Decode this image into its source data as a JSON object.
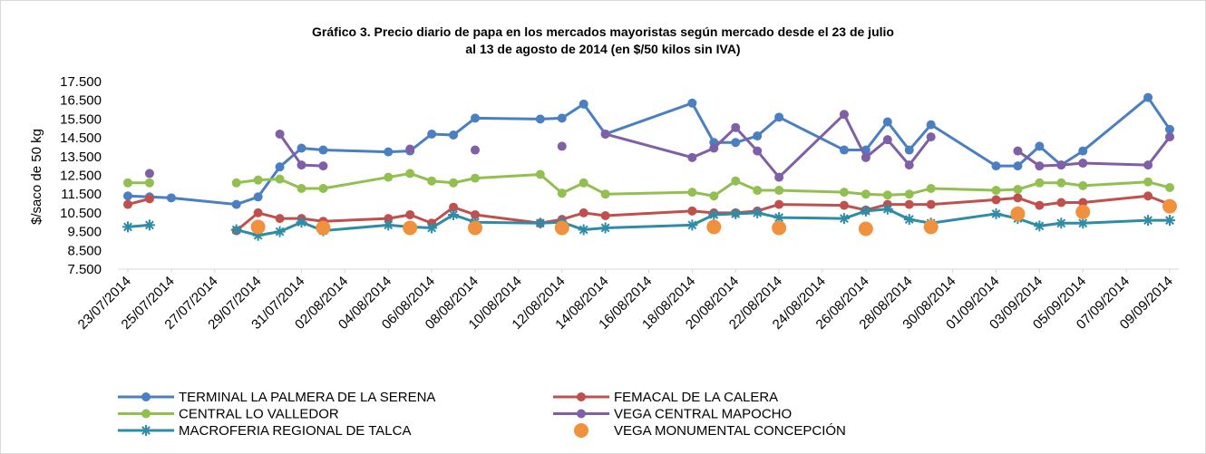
{
  "chart_data": {
    "type": "line",
    "title": [
      "Gráfico 3. Precio diario de papa en los mercados mayoristas según mercado desde el 23 de julio",
      "al 13 de agosto de 2014 (en $/50 kilos sin IVA)"
    ],
    "y_label": "$/saco de 50 kg",
    "x": [
      "23/07/2014",
      "24/07/2014",
      "25/07/2014",
      "28/07/2014",
      "29/07/2014",
      "30/07/2014",
      "31/07/2014",
      "01/08/2014",
      "04/08/2014",
      "05/08/2014",
      "06/08/2014",
      "07/08/2014",
      "08/08/2014",
      "11/08/2014",
      "12/08/2014",
      "13/08/2014",
      "14/08/2014",
      "18/08/2014",
      "19/08/2014",
      "20/08/2014",
      "21/08/2014",
      "22/08/2014",
      "25/08/2014",
      "26/08/2014",
      "27/08/2014",
      "28/08/2014",
      "29/08/2014",
      "01/09/2014",
      "02/09/2014",
      "03/09/2014",
      "04/09/2014",
      "05/09/2014",
      "08/09/2014",
      "09/09/2014"
    ],
    "xlim": [
      "23/07/2014",
      "09/09/2014"
    ],
    "xticks": [
      "23/07/2014",
      "25/07/2014",
      "27/07/2014",
      "29/07/2014",
      "31/07/2014",
      "02/08/2014",
      "04/08/2014",
      "06/08/2014",
      "08/08/2014",
      "10/08/2014",
      "12/08/2014",
      "14/08/2014",
      "16/08/2014",
      "18/08/2014",
      "20/08/2014",
      "22/08/2014",
      "24/08/2014",
      "26/08/2014",
      "28/08/2014",
      "30/08/2014",
      "01/09/2014",
      "03/09/2014",
      "05/09/2014",
      "07/09/2014",
      "09/09/2014"
    ],
    "ylim": [
      7500,
      17500
    ],
    "yticks": [
      {
        "value": 7500,
        "label": "7.500"
      },
      {
        "value": 8500,
        "label": "8.500"
      },
      {
        "value": 9500,
        "label": "9.500"
      },
      {
        "value": 10500,
        "label": "10.500"
      },
      {
        "value": 11500,
        "label": "11.500"
      },
      {
        "value": 12500,
        "label": "12.500"
      },
      {
        "value": 13500,
        "label": "13.500"
      },
      {
        "value": 14500,
        "label": "14.500"
      },
      {
        "value": 15500,
        "label": "15.500"
      },
      {
        "value": 16500,
        "label": "16.500"
      },
      {
        "value": 17500,
        "label": "17.500"
      }
    ],
    "grid": false,
    "legend": "bottom",
    "series": [
      {
        "name": "TERMINAL LA PALMERA DE LA SERENA",
        "color": "#4a7fc1",
        "marker": "circle",
        "line": true,
        "values": [
          11400,
          11350,
          11300,
          10950,
          11350,
          12950,
          13950,
          13850,
          13750,
          13800,
          14700,
          14650,
          15550,
          15500,
          15550,
          16300,
          14700,
          16350,
          14250,
          14250,
          14600,
          15600,
          13850,
          13850,
          15350,
          13850,
          15200,
          13000,
          13000,
          14050,
          13050,
          13800,
          16650,
          14950
        ]
      },
      {
        "name": "FEMACAL DE LA CALERA",
        "color": "#c0504d",
        "marker": "circle",
        "line": true,
        "values": [
          10950,
          11250,
          null,
          9550,
          10500,
          10200,
          10200,
          10050,
          10200,
          10400,
          9950,
          10800,
          10400,
          9950,
          10150,
          10500,
          10350,
          10600,
          10500,
          10500,
          10600,
          10950,
          10900,
          10650,
          10950,
          10950,
          10950,
          11200,
          11300,
          10900,
          11050,
          11050,
          11400,
          10950
        ]
      },
      {
        "name": "CENTRAL LO VALLEDOR",
        "color": "#92c050",
        "marker": "circle",
        "line": true,
        "values": [
          12100,
          12100,
          null,
          12100,
          12250,
          12300,
          11800,
          11800,
          12400,
          12600,
          12200,
          12100,
          12350,
          12550,
          11550,
          12100,
          11500,
          11600,
          11400,
          12200,
          11700,
          11700,
          11600,
          11500,
          11450,
          11500,
          11800,
          11700,
          11750,
          12100,
          12100,
          11950,
          12150,
          11850
        ]
      },
      {
        "name": "VEGA CENTRAL MAPOCHO",
        "color": "#7f5fa5",
        "marker": "circle",
        "line": true,
        "values": [
          null,
          12600,
          null,
          null,
          null,
          14700,
          13050,
          13000,
          null,
          13900,
          null,
          null,
          13850,
          null,
          14050,
          null,
          14700,
          13450,
          13950,
          15050,
          13800,
          12400,
          15750,
          13450,
          14400,
          13050,
          14550,
          null,
          13800,
          13000,
          13050,
          13150,
          13050,
          14550
        ]
      },
      {
        "name": "MACROFERIA REGIONAL DE TALCA",
        "color": "#2f8ca6",
        "marker": "asterisk",
        "line": true,
        "values": [
          9750,
          9850,
          null,
          9600,
          9300,
          9500,
          10000,
          9550,
          9850,
          9750,
          9700,
          10400,
          10000,
          9950,
          10000,
          9600,
          9700,
          9850,
          10400,
          10450,
          10500,
          10250,
          10200,
          10600,
          10700,
          10150,
          9950,
          10450,
          10200,
          9800,
          9950,
          9950,
          10100,
          10100
        ]
      },
      {
        "name": "VEGA MONUMENTAL CONCEPCIÓN",
        "color": "#f0913e",
        "marker": "circle-large",
        "line": false,
        "values": [
          null,
          null,
          null,
          null,
          9750,
          null,
          null,
          9700,
          null,
          9700,
          null,
          null,
          9700,
          null,
          9700,
          null,
          null,
          null,
          9750,
          null,
          null,
          9700,
          null,
          9650,
          null,
          null,
          9750,
          null,
          10450,
          null,
          null,
          10550,
          null,
          10850
        ]
      }
    ]
  }
}
